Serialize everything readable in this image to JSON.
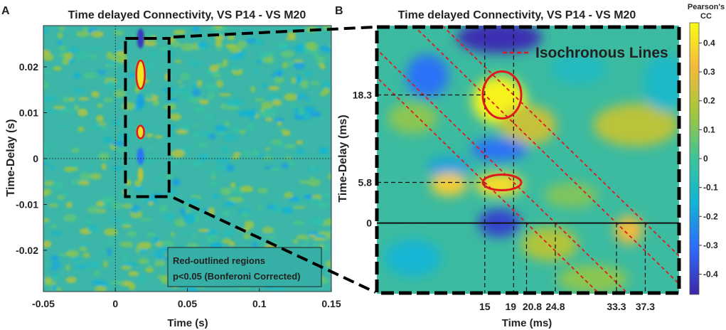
{
  "chart_data": [
    {
      "type": "heatmap",
      "panel_label": "A",
      "title": "Time delayed Connectivity, VS P14 - VS M20",
      "xlabel": "Time (s)",
      "ylabel": "Time-Delay (s)",
      "xlim": [
        -0.05,
        0.15
      ],
      "ylim": [
        -0.029,
        0.029
      ],
      "xticks": [
        -0.05,
        0,
        0.05,
        0.1,
        0.15
      ],
      "xtick_labels": [
        "-0.05",
        "0",
        "0.05",
        "0.1",
        "0.15"
      ],
      "yticks": [
        0.02,
        0.01,
        0,
        -0.01,
        -0.02
      ],
      "ytick_labels": [
        "0.02",
        "0.01",
        "0",
        "-0.01",
        "-0.02"
      ],
      "zoom_box": {
        "x": [
          0.007,
          0.0373
        ],
        "y": [
          -0.0083,
          0.0262
        ]
      },
      "significant_regions": [
        {
          "x_center": 0.0175,
          "y_center": 0.0183
        },
        {
          "x_center": 0.0175,
          "y_center": 0.0058
        }
      ],
      "annotation": [
        "Red-outlined regions",
        "p<0.05 (Bonferoni Corrected)"
      ]
    },
    {
      "type": "heatmap",
      "panel_label": "B",
      "title": "Time delayed Connectivity, VS P14 - VS M20",
      "xlabel": "Time (ms)",
      "ylabel": "Time-Delay (ms)",
      "xlim": [
        0,
        42
      ],
      "ylim": [
        -10,
        28
      ],
      "xticks": [
        15,
        19,
        20.8,
        24.8,
        33.3,
        37.3
      ],
      "xtick_labels": [
        "15",
        "19",
        "20.8",
        "24.8",
        "33.3",
        "37.3"
      ],
      "yticks": [
        18.3,
        5.8,
        0
      ],
      "ytick_labels": [
        "18.3",
        "5.8",
        "0"
      ],
      "legend": [
        "Isochronous Lines"
      ],
      "legend_position": "top-right",
      "isochronous_line_origins_ms": [
        20.8,
        24.8,
        33.3,
        37.3
      ],
      "significant_regions": [
        {
          "x_center": 17,
          "y_center": 18.3
        },
        {
          "x_center": 17,
          "y_center": 5.8
        }
      ]
    }
  ],
  "colorbar": {
    "title_line1": "Pearson's",
    "title_line2": "CC",
    "min": -0.47,
    "max": 0.47,
    "ticks": [
      0.4,
      0.3,
      0.2,
      0.1,
      0,
      -0.1,
      -0.2,
      -0.3,
      -0.4
    ],
    "tick_labels": [
      "0.4",
      "0.3",
      "0.2",
      "0.1",
      "0",
      "-0.1",
      "-0.2",
      "-0.3",
      "-0.4"
    ],
    "colors": [
      "#3e26a8",
      "#2c6cf9",
      "#12b4d6",
      "#3cc499",
      "#a5c63b",
      "#f5ba3c",
      "#f9fb15"
    ]
  }
}
